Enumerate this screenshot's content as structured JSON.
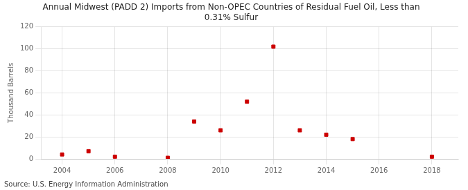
{
  "chart_data": {
    "type": "scatter",
    "title": "Annual Midwest (PADD 2) Imports from Non-OPEC Countries of Residual Fuel Oil, Less than\n0.31% Sulfur",
    "ylabel": "Thousand Barrels",
    "annotations": [
      "Source: U.S. Energy Information Administration"
    ],
    "x": [
      2004,
      2005,
      2006,
      2008,
      2009,
      2010,
      2011,
      2012,
      2013,
      2014,
      2015,
      2018
    ],
    "values": [
      4,
      7,
      2,
      1,
      34,
      26,
      52,
      102,
      26,
      22,
      18,
      2
    ],
    "color": "#cc0000",
    "marker": "square",
    "xlim": [
      2003.2,
      2019.0
    ],
    "xticks": [
      2004,
      2006,
      2008,
      2010,
      2012,
      2014,
      2016,
      2018
    ],
    "ylim": [
      0,
      120
    ],
    "yticks": [
      0,
      20,
      40,
      60,
      80,
      100,
      120
    ],
    "grid": true
  }
}
